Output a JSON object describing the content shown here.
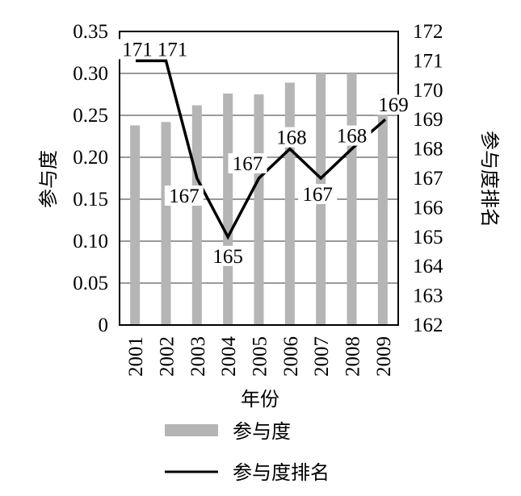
{
  "chart_data": {
    "type": "bar+line",
    "categories": [
      "2001",
      "2002",
      "2003",
      "2004",
      "2005",
      "2006",
      "2007",
      "2008",
      "2009"
    ],
    "xlabel": "年份",
    "series": [
      {
        "name": "参与度",
        "type": "bar",
        "axis": "left",
        "color": "#b5b5b5",
        "values": [
          0.238,
          0.242,
          0.262,
          0.276,
          0.275,
          0.289,
          0.3,
          0.3,
          0.275
        ]
      },
      {
        "name": "参与度排名",
        "type": "line",
        "axis": "right",
        "color": "#000000",
        "values": [
          171,
          171,
          167,
          165,
          167,
          168,
          167,
          168,
          169
        ],
        "data_labels": [
          "171",
          "171",
          "167",
          "165",
          "167",
          "168",
          "167",
          "168",
          "169"
        ]
      }
    ],
    "y_left": {
      "label": "参与度",
      "ylim": [
        0,
        0.35
      ],
      "ticks": [
        "0",
        "0.05",
        "0.10",
        "0.15",
        "0.20",
        "0.25",
        "0.30",
        "0.35"
      ]
    },
    "y_right": {
      "label": "参与度排名",
      "ylim": [
        162,
        172
      ],
      "ticks": [
        "162",
        "163",
        "164",
        "165",
        "166",
        "167",
        "168",
        "169",
        "170",
        "171",
        "172"
      ]
    },
    "grid": "horizontal",
    "legend": {
      "position": "bottom",
      "items": [
        "参与度",
        "参与度排名"
      ]
    }
  }
}
